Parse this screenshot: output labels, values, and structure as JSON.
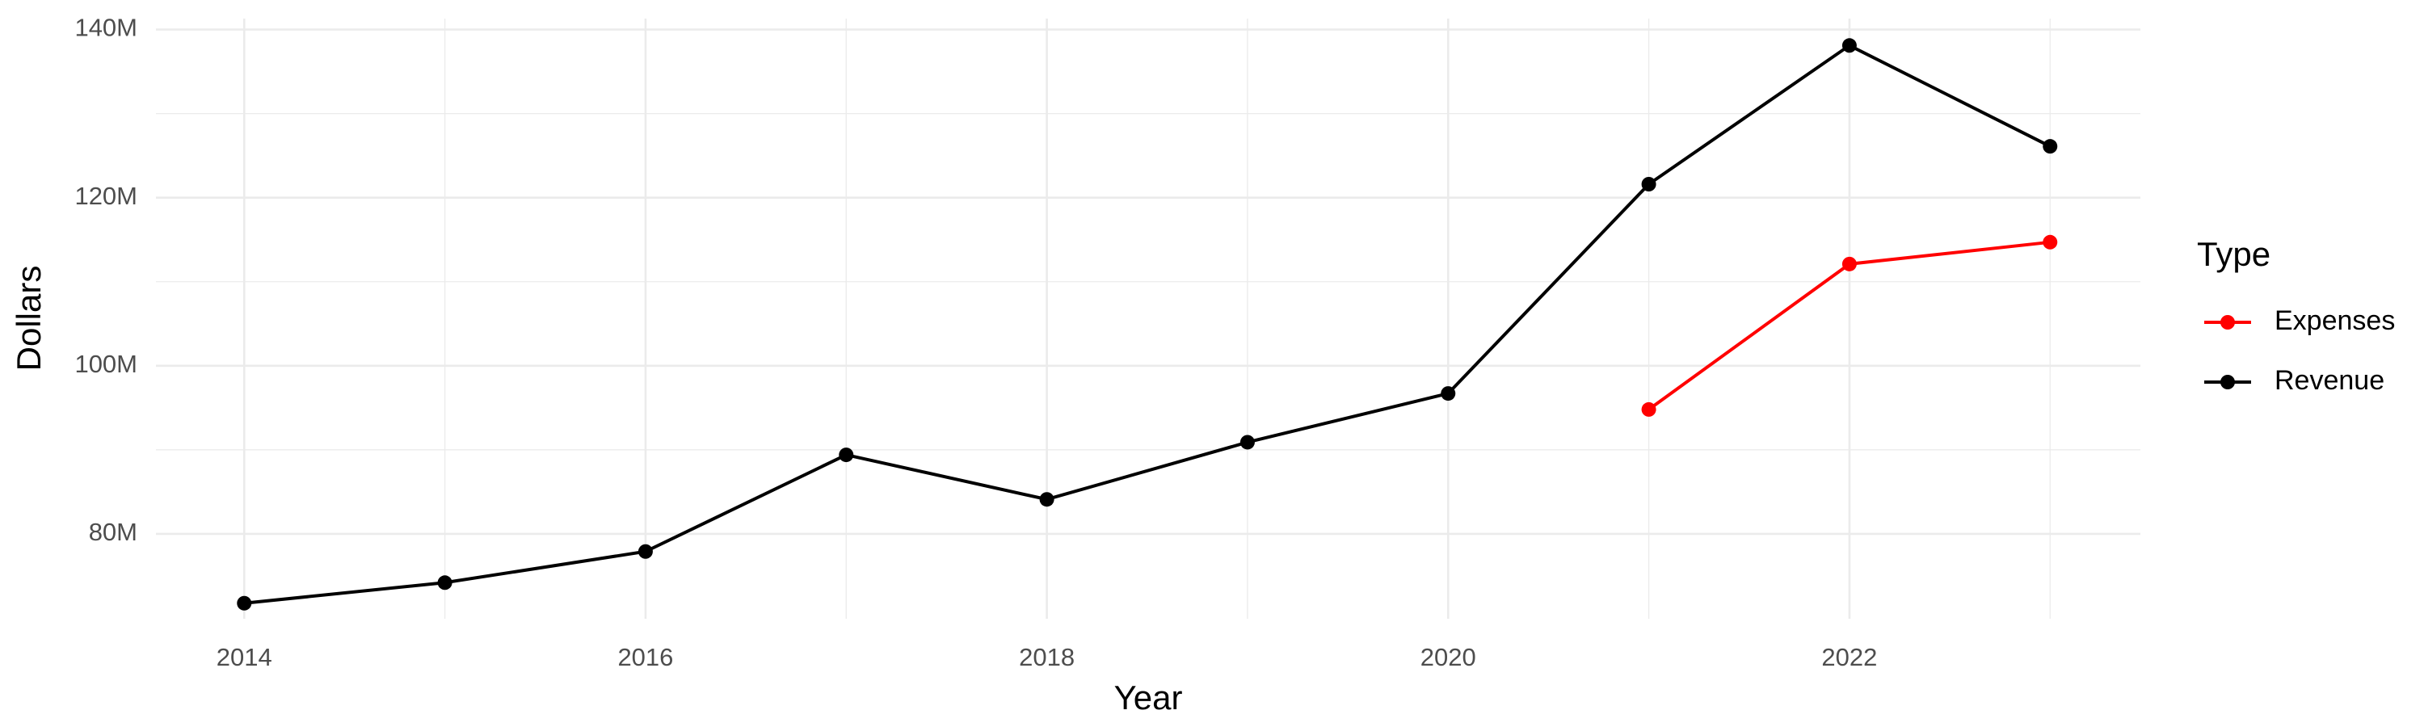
{
  "chart_data": {
    "type": "line",
    "x_label": "Year",
    "y_label": "Dollars",
    "x": [
      2014,
      2015,
      2016,
      2017,
      2018,
      2019,
      2020,
      2021,
      2022,
      2023
    ],
    "series": [
      {
        "name": "Expenses",
        "color": "#ff0000",
        "values": [
          null,
          null,
          null,
          null,
          null,
          null,
          null,
          94.8,
          112.1,
          114.7
        ]
      },
      {
        "name": "Revenue",
        "color": "#000000",
        "values": [
          71.75,
          74.2,
          77.9,
          89.4,
          84.1,
          90.9,
          96.7,
          121.6,
          138.1,
          126.1
        ]
      }
    ],
    "xlim": [
      2013.56,
      2023.45
    ],
    "xticks": [
      2014,
      2016,
      2018,
      2020,
      2022
    ],
    "ylim": [
      69.9,
      141.3
    ],
    "yticks": [
      {
        "value": 80,
        "label": "80M"
      },
      {
        "value": 100,
        "label": "100M"
      },
      {
        "value": 120,
        "label": "120M"
      },
      {
        "value": 140,
        "label": "140M"
      }
    ],
    "x_minor_ticks": [
      2015,
      2017,
      2019,
      2021,
      2023
    ],
    "y_minor_ticks": [
      90,
      110,
      130
    ],
    "grid": true,
    "legend_title": "Type",
    "legend_position": "right"
  }
}
